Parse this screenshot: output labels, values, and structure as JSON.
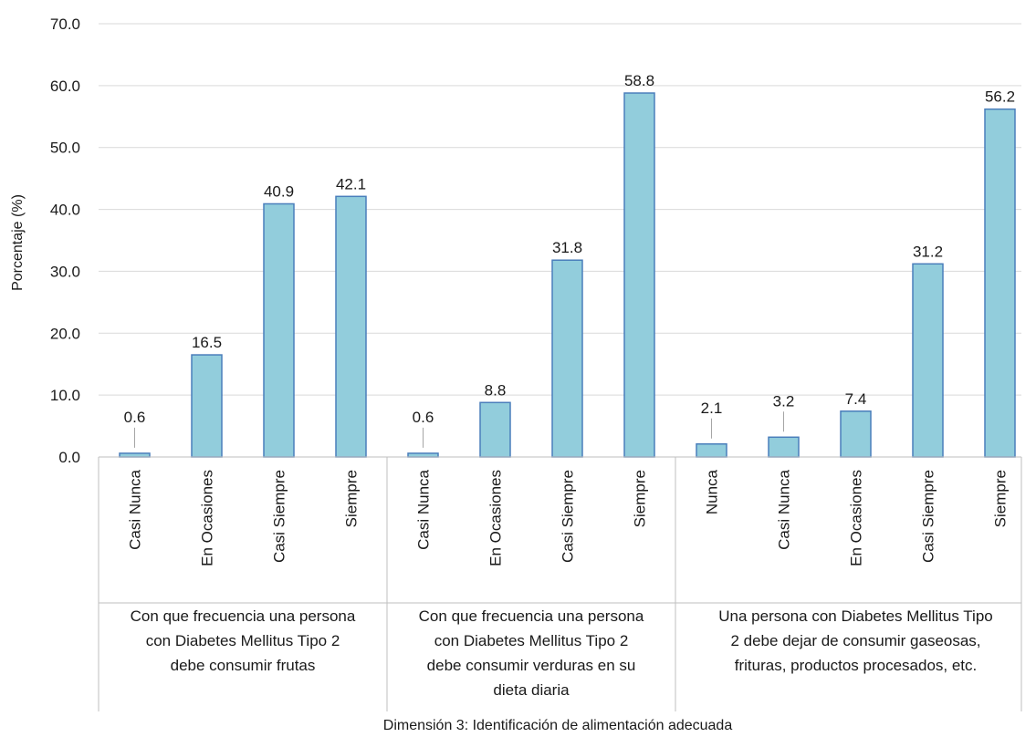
{
  "chart_data": {
    "type": "bar",
    "ylabel": "Porcentaje (%)",
    "xlabel": "Dimensión 3: Identificación de alimentación adecuada",
    "ylim": [
      0,
      70
    ],
    "yticks": [
      "0.0",
      "10.0",
      "20.0",
      "30.0",
      "40.0",
      "50.0",
      "60.0",
      "70.0"
    ],
    "grid": true,
    "bar_color": "#92cddc",
    "bar_border_color": "#4a7ebb",
    "groups": [
      {
        "label_lines": [
          "Con que frecuencia una persona",
          "con Diabetes Mellitus Tipo 2",
          "debe consumir frutas"
        ],
        "categories": [
          "Casi Nunca",
          "En Ocasiones",
          "Casi Siempre",
          "Siempre"
        ],
        "values": [
          0.6,
          16.5,
          40.9,
          42.1
        ],
        "value_labels": [
          "0.6",
          "16.5",
          "40.9",
          "42.1"
        ]
      },
      {
        "label_lines": [
          "Con que frecuencia una persona",
          "con Diabetes Mellitus Tipo 2",
          "debe consumir verduras en su",
          "dieta diaria"
        ],
        "categories": [
          "Casi Nunca",
          "En Ocasiones",
          "Casi Siempre",
          "Siempre"
        ],
        "values": [
          0.6,
          8.8,
          31.8,
          58.8
        ],
        "value_labels": [
          "0.6",
          "8.8",
          "31.8",
          "58.8"
        ]
      },
      {
        "label_lines": [
          "Una persona con Diabetes Mellitus Tipo",
          "2 debe dejar de  consumir gaseosas,",
          "frituras, productos procesados, etc."
        ],
        "categories": [
          "Nunca",
          "Casi Nunca",
          "En Ocasiones",
          "Casi Siempre",
          "Siempre"
        ],
        "values": [
          2.1,
          3.2,
          7.4,
          31.2,
          56.2
        ],
        "value_labels": [
          "2.1",
          "3.2",
          "7.4",
          "31.2",
          "56.2"
        ]
      }
    ]
  }
}
